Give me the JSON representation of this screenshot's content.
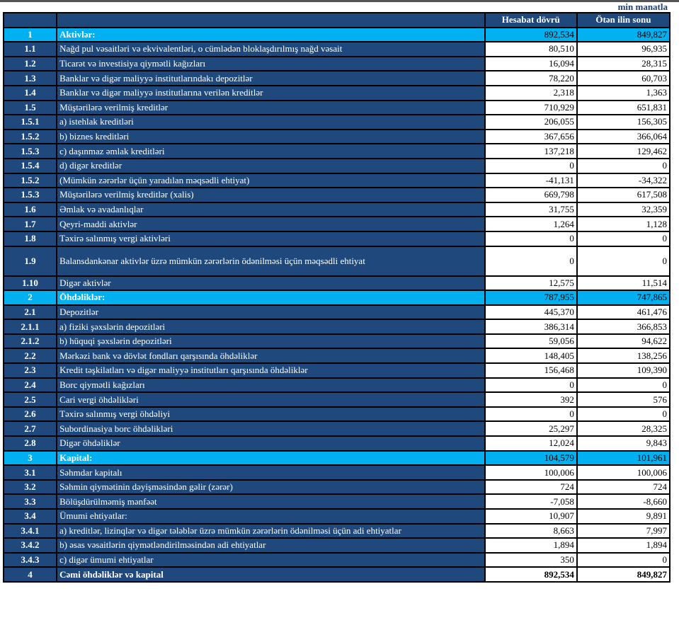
{
  "unit_label": "min manatla",
  "columns": {
    "current": "Hesabat dövrü",
    "previous": "Ötən ilin sonu"
  },
  "colors": {
    "row_dark": "#1f497d",
    "section_highlight": "#00b0f0"
  },
  "rows": [
    {
      "num": "1",
      "label": "Aktivlər:",
      "cur": "892,534",
      "prev": "849,827",
      "type": "sec"
    },
    {
      "num": "1.1",
      "label": "Nağd pul vəsaitləri və  ekvivalentləri, o cümlədən bloklaşdırılmış nağd vəsait",
      "cur": "80,510",
      "prev": "96,935"
    },
    {
      "num": "1.2",
      "label": "Ticarət və investisiya qiymətli kağızları",
      "cur": "16,094",
      "prev": "28,315"
    },
    {
      "num": "1.3",
      "label": "Banklar və digər maliyyə institutlarındakı depozitlər",
      "cur": "78,220",
      "prev": "60,703"
    },
    {
      "num": "1.4",
      "label": "Banklar və digər maliyyə institutlarına verilən kreditlər",
      "cur": "2,318",
      "prev": "1,363"
    },
    {
      "num": "1.5",
      "label": "Müştərilərə verilmiş kreditlər",
      "cur": "710,929",
      "prev": "651,831"
    },
    {
      "num": "1.5.1",
      "label": "a) istehlak kreditləri",
      "cur": "206,055",
      "prev": "156,305"
    },
    {
      "num": "1.5.2",
      "label": "b) biznes kreditləri",
      "cur": "367,656",
      "prev": "366,064"
    },
    {
      "num": "1.5.3",
      "label": "c) daşınmaz əmlak kreditləri",
      "cur": "137,218",
      "prev": "129,462"
    },
    {
      "num": "1.5.4",
      "label": "d) digər kreditlər",
      "cur": "0",
      "prev": "0"
    },
    {
      "num": "1.5.2",
      "label": "(Mümkün zərərlər üçün yaradılan məqsədli ehtiyat)",
      "cur": "-41,131",
      "prev": "-34,322"
    },
    {
      "num": "1.5.3",
      "label": "Müştərilərə verilmiş kreditlər (xalis)",
      "cur": "669,798",
      "prev": "617,508"
    },
    {
      "num": "1.6",
      "label": "Əmlak və avadanlıqlar",
      "cur": "31,755",
      "prev": "32,359"
    },
    {
      "num": "1.7",
      "label": "Qeyri-maddi aktivlər",
      "cur": "1,264",
      "prev": "1,128"
    },
    {
      "num": "1.8",
      "label": "Təxirə salınmış vergi aktivləri",
      "cur": "0",
      "prev": "0"
    },
    {
      "num": "1.9",
      "label": "Balansdankənar aktivlər üzrə mümkün zərərlərin ödənilməsi üçün məqsədli ehtiyat",
      "cur": "0",
      "prev": "0",
      "type": "tall"
    },
    {
      "num": "1.10",
      "label": "Digər aktivlər",
      "cur": "12,575",
      "prev": "11,514"
    },
    {
      "num": "2",
      "label": "Öhdəliklər:",
      "cur": "787,955",
      "prev": "747,865",
      "type": "sec"
    },
    {
      "num": "2.1",
      "label": "Depozitlər",
      "cur": "445,370",
      "prev": "461,476"
    },
    {
      "num": "2.1.1",
      "label": "a) fiziki şəxslərin depozitləri",
      "cur": "386,314",
      "prev": "366,853"
    },
    {
      "num": "2.1.2",
      "label": "b) hüquqi şəxslərin depozitləri",
      "cur": "59,056",
      "prev": "94,622"
    },
    {
      "num": "2.2",
      "label": "Mərkəzi bank və dövlət fondları qarşısında öhdəliklər",
      "cur": "148,405",
      "prev": "138,256"
    },
    {
      "num": "2.3",
      "label": "Kredit təşkilatları və digər maliyyə institutları qarşısında öhdəliklər",
      "cur": "156,468",
      "prev": "109,390"
    },
    {
      "num": "2.4",
      "label": "Borc qiymətli kağızları",
      "cur": "0",
      "prev": "0"
    },
    {
      "num": "2.5",
      "label": "Cari vergi öhdəlikləri",
      "cur": "392",
      "prev": "576"
    },
    {
      "num": "2.6",
      "label": "Təxirə salınmış vergi öhdəliyi",
      "cur": "0",
      "prev": "0"
    },
    {
      "num": "2.7",
      "label": "Subordinasiya borc öhdəlikləri",
      "cur": "25,297",
      "prev": "28,325"
    },
    {
      "num": "2.8",
      "label": "Digər öhdəliklər",
      "cur": "12,024",
      "prev": "9,843"
    },
    {
      "num": "3",
      "label": "Kapital:",
      "cur": "104,579",
      "prev": "101,961",
      "type": "sec"
    },
    {
      "num": "3.1",
      "label": "Səhmdar kapitalı",
      "cur": "100,006",
      "prev": "100,006"
    },
    {
      "num": "3.2",
      "label": "Səhmin qiymətinin dəyişməsindən gəlir (zərər)",
      "cur": "724",
      "prev": "724"
    },
    {
      "num": "3.3",
      "label": "Bölüşdürülməmiş mənfəət",
      "cur": "-7,058",
      "prev": "-8,660"
    },
    {
      "num": "3.4",
      "label": "Ümumi ehtiyatlar:",
      "cur": "10,907",
      "prev": "9,891"
    },
    {
      "num": "3.4.1",
      "label": "a) kreditlər, lizinqlər və digər tələblər üzrə mümkün zərərlərin ödənilməsi üçün adi ehtiyatlar",
      "cur": "8,663",
      "prev": "7,997"
    },
    {
      "num": "3.4.2",
      "label": "b) əsas vəsaitlərin qiymətləndirilməsindən adi ehtiyatlar",
      "cur": "1,894",
      "prev": "1,894"
    },
    {
      "num": "3.4.3",
      "label": "c) digər ümumi ehtiyatlar",
      "cur": "350",
      "prev": "0"
    },
    {
      "num": "4",
      "label": "Cəmi öhdəliklər və kapital",
      "cur": "892,534",
      "prev": "849,827",
      "type": "total"
    }
  ]
}
